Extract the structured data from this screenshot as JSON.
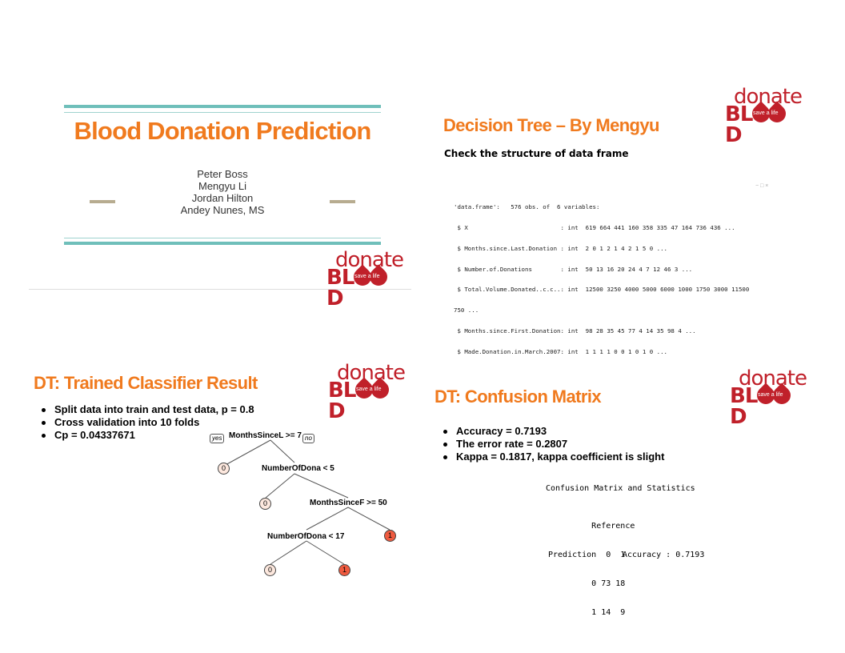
{
  "slide1": {
    "title": "Blood Donation Prediction",
    "authors": [
      "Peter Boss",
      "Mengyu Li",
      "Jordan Hilton",
      "Andey Nunes, MS"
    ]
  },
  "logo": {
    "top": "donate",
    "bottom": "BL",
    "end": "D",
    "tagline": "save a life"
  },
  "slide2": {
    "title": "Decision Tree – By Mengyu",
    "subtitle": "Check the structure of data frame",
    "window_controls": "−  □  ×",
    "code": [
      "'data.frame':   576 obs. of  6 variables:",
      " $ X                          : int  619 664 441 160 358 335 47 164 736 436 ...",
      " $ Months.since.Last.Donation : int  2 0 1 2 1 4 2 1 5 0 ...",
      " $ Number.of.Donations        : int  50 13 16 20 24 4 7 12 46 3 ...",
      " $ Total.Volume.Donated..c.c..: int  12500 3250 4000 5000 6000 1000 1750 3000 11500",
      "750 ...",
      " $ Months.since.First.Donation: int  98 28 35 45 77 4 14 35 98 4 ...",
      " $ Made.Donation.in.March.2007: int  1 1 1 1 0 0 1 0 1 0 ..."
    ]
  },
  "slide3": {
    "title": "DT: Trained Classifier Result",
    "bullets": [
      "Split data into train and test data, p = 0.8",
      "Cross validation into 10 folds",
      "Cp = 0.04337671"
    ],
    "tree": {
      "root": "MonthsSinceL >= 7",
      "yes": "yes",
      "no": "no",
      "split2": "NumberOfDona < 5",
      "split3": "MonthsSinceF >= 50",
      "split4": "NumberOfDona < 17",
      "leaves": [
        "0",
        "0",
        "1",
        "0",
        "1"
      ]
    }
  },
  "slide4": {
    "title": "DT: Confusion Matrix",
    "bullets": [
      "Accuracy = 0.7193",
      "The error rate = 0.2807",
      "Kappa = 0.1817, kappa coefficient is slight"
    ],
    "matrix_heading": "Confusion Matrix and Statistics",
    "matrix_lines": [
      "         Reference",
      "Prediction  0  1",
      "         0 73 18",
      "         1 14  9"
    ],
    "accuracy_line": "Accuracy : 0.7193"
  },
  "colors": {
    "orange": "#f07a1e",
    "teal": "#6fbfba",
    "red": "#c0202a",
    "tan": "#b7ac90"
  }
}
